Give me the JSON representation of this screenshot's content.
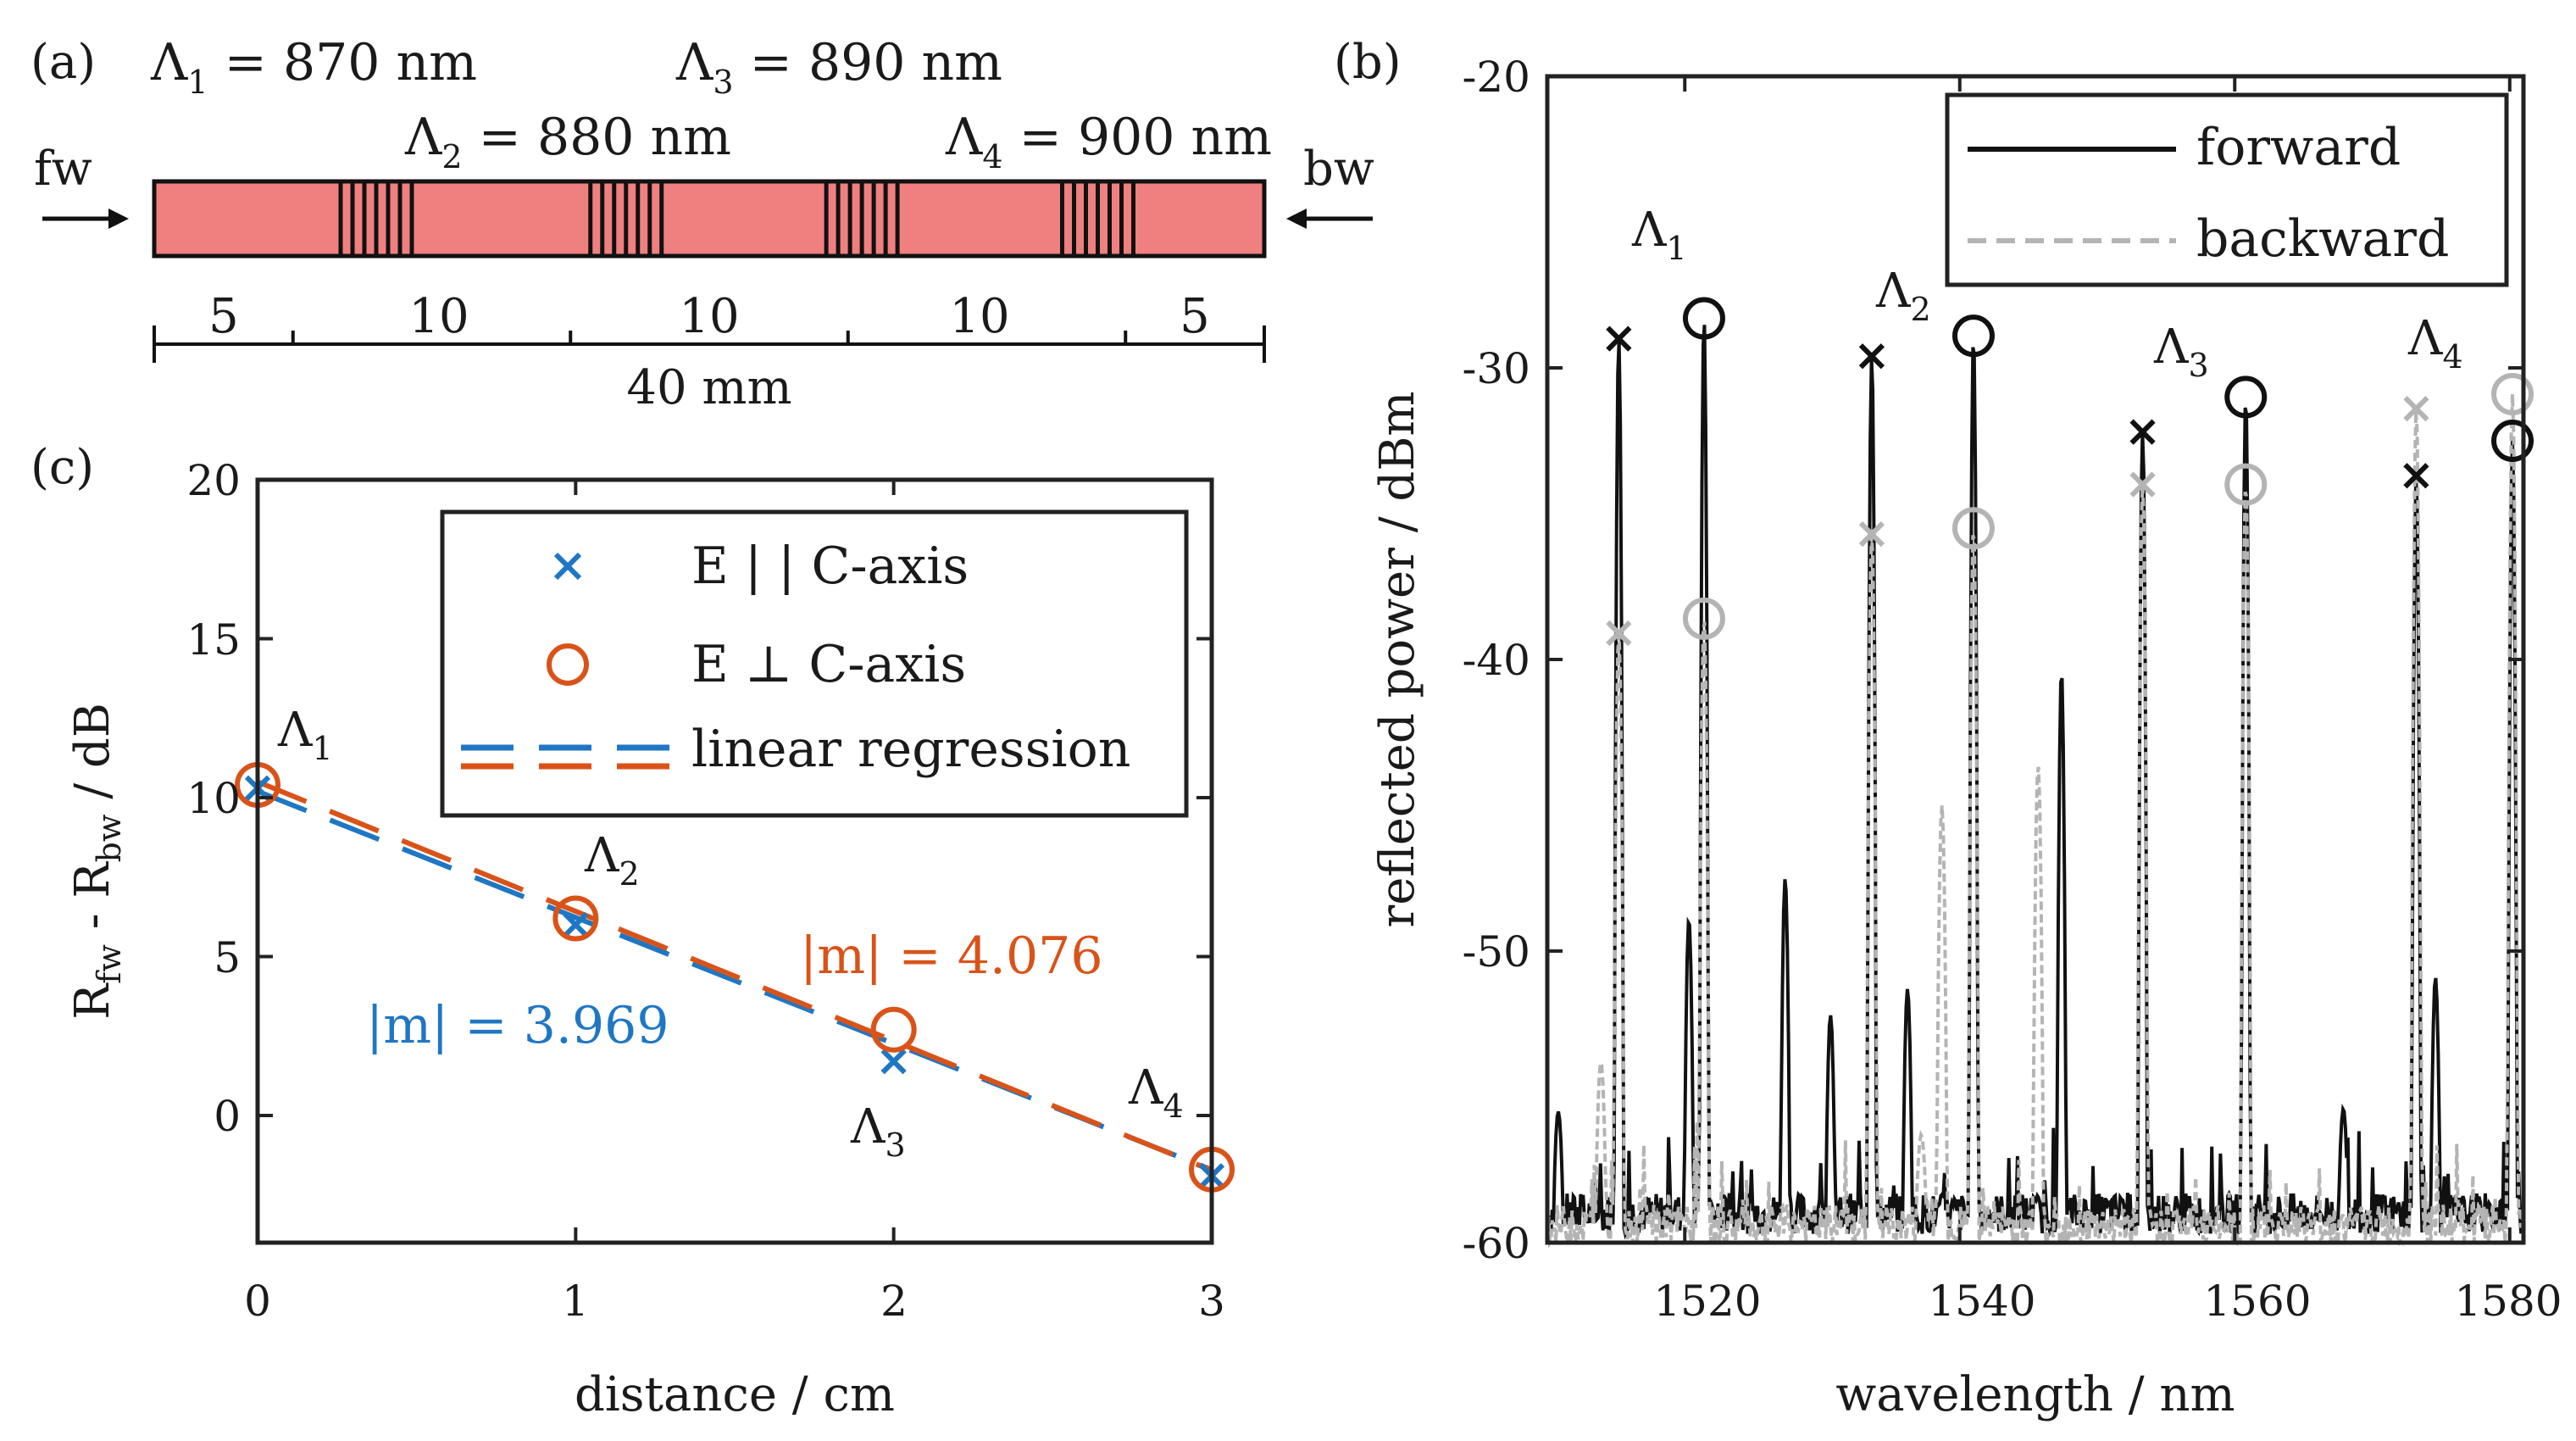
{
  "panel_a": {
    "label": "(a)",
    "fw_label": "fw",
    "bw_label": "bw",
    "gratings": [
      {
        "lambda": "Λ",
        "sub": "1",
        "text": " = 870 nm"
      },
      {
        "lambda": "Λ",
        "sub": "2",
        "text": " = 880 nm"
      },
      {
        "lambda": "Λ",
        "sub": "3",
        "text": " = 890 nm"
      },
      {
        "lambda": "Λ",
        "sub": "4",
        "text": " = 900 nm"
      }
    ],
    "segments": [
      "5",
      "10",
      "10",
      "10",
      "5"
    ],
    "segment_values_mm": [
      5,
      10,
      10,
      10,
      5
    ],
    "total_length": "40 mm",
    "waveguide_color": "#f08080"
  },
  "panel_b": {
    "label": "(b)",
    "chart_data": {
      "type": "line",
      "xlabel": "wavelength / nm",
      "ylabel": "reflected power / dBm",
      "xlim": [
        1510,
        1581
      ],
      "ylim": [
        -60,
        -20
      ],
      "xticks": [
        "1520",
        "1540",
        "1560",
        "1580"
      ],
      "xtick_values": [
        1520,
        1540,
        1560,
        1580
      ],
      "yticks": [
        "-20",
        "-30",
        "-40",
        "-50",
        "-60"
      ],
      "ytick_values": [
        -20,
        -30,
        -40,
        -50,
        -60
      ],
      "legend": [
        {
          "name": "forward",
          "color": "#111111",
          "style": "solid"
        },
        {
          "name": "backward",
          "color": "#b4b4b4",
          "style": "dashed"
        }
      ],
      "series": [
        {
          "name": "forward",
          "color": "#111111",
          "noise_floor": -59,
          "peaks": [
            {
              "x": 1515.2,
              "y": -29
            },
            {
              "x": 1521.4,
              "y": -28.3
            },
            {
              "x": 1533.6,
              "y": -29.6
            },
            {
              "x": 1541.0,
              "y": -28.9
            },
            {
              "x": 1553.3,
              "y": -32.2
            },
            {
              "x": 1560.8,
              "y": -31
            },
            {
              "x": 1573.2,
              "y": -33.7
            },
            {
              "x": 1580.2,
              "y": -32.5
            },
            {
              "x": 1527.3,
              "y": -47.5
            },
            {
              "x": 1547.4,
              "y": -40.4
            },
            {
              "x": 1520.3,
              "y": -48.9
            },
            {
              "x": 1536.2,
              "y": -51.3
            },
            {
              "x": 1574.6,
              "y": -50.9
            },
            {
              "x": 1530.6,
              "y": -52.2
            },
            {
              "x": 1567.9,
              "y": -55.4
            },
            {
              "x": 1510.8,
              "y": -55.5
            }
          ]
        },
        {
          "name": "backward",
          "color": "#b4b4b4",
          "noise_floor": -59.4,
          "peaks": [
            {
              "x": 1515.2,
              "y": -39.1
            },
            {
              "x": 1521.4,
              "y": -38.6
            },
            {
              "x": 1533.6,
              "y": -35.7
            },
            {
              "x": 1541.0,
              "y": -35.5
            },
            {
              "x": 1553.3,
              "y": -34
            },
            {
              "x": 1560.8,
              "y": -34
            },
            {
              "x": 1573.2,
              "y": -31.4
            },
            {
              "x": 1580.2,
              "y": -30.9
            },
            {
              "x": 1538.7,
              "y": -45
            },
            {
              "x": 1545.7,
              "y": -43.6
            },
            {
              "x": 1513.9,
              "y": -53.8
            },
            {
              "x": 1537.2,
              "y": -56.3
            }
          ]
        }
      ],
      "markers": {
        "forward_x": [
          [
            1515.2,
            -29
          ],
          [
            1533.6,
            -29.6
          ],
          [
            1553.3,
            -32.2
          ],
          [
            1573.2,
            -33.7
          ]
        ],
        "forward_o": [
          [
            1521.4,
            -28.3
          ],
          [
            1541.0,
            -28.9
          ],
          [
            1560.8,
            -31
          ],
          [
            1580.2,
            -32.5
          ]
        ],
        "backward_x": [
          [
            1515.2,
            -39.1
          ],
          [
            1533.6,
            -35.7
          ],
          [
            1553.3,
            -34
          ],
          [
            1573.2,
            -31.4
          ]
        ],
        "backward_o": [
          [
            1521.4,
            -38.6
          ],
          [
            1541.0,
            -35.5
          ],
          [
            1560.8,
            -34
          ],
          [
            1580.2,
            -30.9
          ]
        ]
      },
      "annotations": [
        {
          "text": "Λ",
          "sub": "1"
        },
        {
          "text": "Λ",
          "sub": "2"
        },
        {
          "text": "Λ",
          "sub": "3"
        },
        {
          "text": "Λ",
          "sub": "4"
        }
      ]
    }
  },
  "panel_c": {
    "label": "(c)",
    "chart_data": {
      "type": "scatter",
      "xlabel": "distance / cm",
      "ylabel_main": "R",
      "ylabel_sub1": "fw",
      "ylabel_mid": " - R",
      "ylabel_sub2": "bw",
      "ylabel_unit": " / dB",
      "xlim": [
        0,
        3
      ],
      "ylim": [
        -4,
        20
      ],
      "xticks": [
        "0",
        "1",
        "2",
        "3"
      ],
      "xtick_values": [
        0,
        1,
        2,
        3
      ],
      "yticks": [
        "20",
        "15",
        "10",
        "5",
        "0"
      ],
      "ytick_values": [
        20,
        15,
        10,
        5,
        0
      ],
      "series": [
        {
          "name": "E || C-axis",
          "legend_label": "E | | C-axis",
          "marker": "x",
          "color": "#1f77c4",
          "x": [
            0,
            1,
            2,
            3
          ],
          "y": [
            10.3,
            6.0,
            1.7,
            -1.9
          ],
          "fit": {
            "slope": -3.969,
            "intercept": 10.2
          }
        },
        {
          "name": "E ⊥ C-axis",
          "legend_label": "E ⊥ C-axis",
          "marker": "o",
          "color": "#d95319",
          "x": [
            0,
            1,
            2,
            3
          ],
          "y": [
            10.4,
            6.2,
            2.7,
            -1.7
          ],
          "fit": {
            "slope": -4.076,
            "intercept": 10.5
          }
        }
      ],
      "regression_label": "linear regression",
      "slope_labels": [
        {
          "text": "|m| = 3.969",
          "color": "#1f77c4"
        },
        {
          "text": "|m| = 4.076",
          "color": "#d95319"
        }
      ],
      "point_labels": [
        {
          "text": "Λ",
          "sub": "1"
        },
        {
          "text": "Λ",
          "sub": "2"
        },
        {
          "text": "Λ",
          "sub": "3"
        },
        {
          "text": "Λ",
          "sub": "4"
        }
      ]
    }
  }
}
